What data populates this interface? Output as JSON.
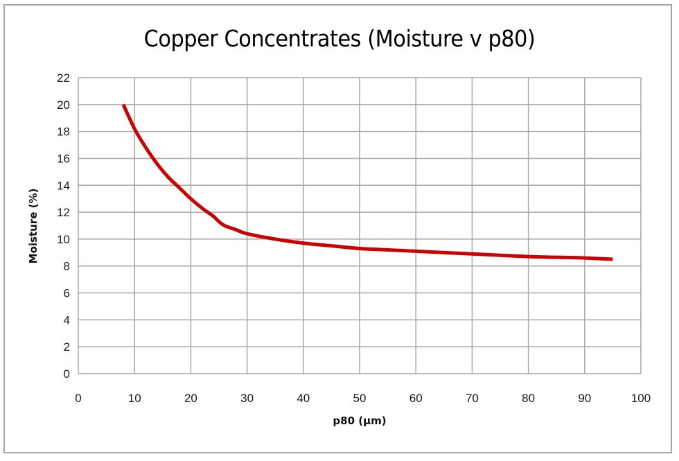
{
  "chart_data": {
    "type": "line",
    "title": "Copper Concentrates (Moisture v p80)",
    "xlabel": "p80 (µm)",
    "ylabel": "Moisture (%)",
    "xlim": [
      0,
      100
    ],
    "ylim": [
      0,
      22
    ],
    "x_ticks": [
      0,
      10,
      20,
      30,
      40,
      50,
      60,
      70,
      80,
      90,
      100
    ],
    "y_ticks": [
      0,
      2,
      4,
      6,
      8,
      10,
      12,
      14,
      16,
      18,
      20,
      22
    ],
    "grid": true,
    "legend": null,
    "series": [
      {
        "name": "Moisture",
        "color": "#cc0000",
        "x": [
          8,
          10,
          12,
          14,
          16,
          18,
          20,
          22,
          24,
          25,
          26,
          28,
          30,
          35,
          40,
          45,
          50,
          55,
          60,
          65,
          70,
          75,
          80,
          85,
          90,
          95
        ],
        "y": [
          20.0,
          18.2,
          16.8,
          15.6,
          14.6,
          13.8,
          13.0,
          12.3,
          11.7,
          11.3,
          11.0,
          10.7,
          10.4,
          10.0,
          9.7,
          9.5,
          9.3,
          9.2,
          9.1,
          9.0,
          8.9,
          8.8,
          8.7,
          8.65,
          8.6,
          8.5
        ]
      }
    ]
  },
  "colors": {
    "line": "#cc0000",
    "grid": "#a6a6a6",
    "frame": "#a6a6a6"
  }
}
